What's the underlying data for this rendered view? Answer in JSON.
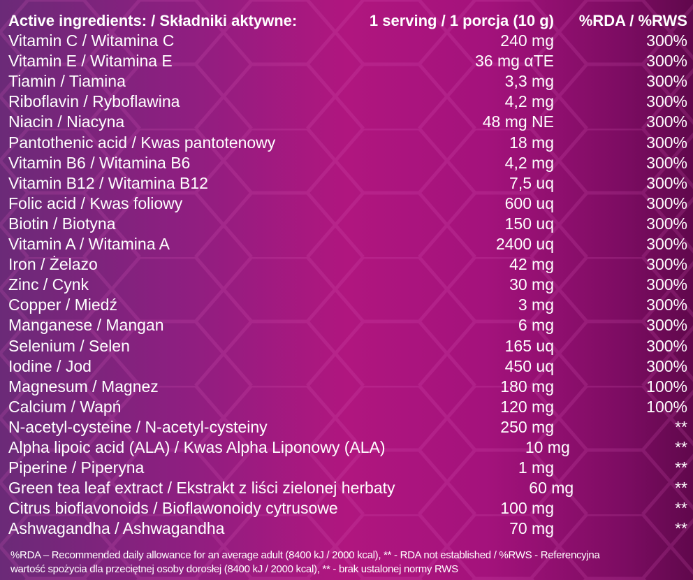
{
  "header": {
    "name": "Active ingredients: / Składniki aktywne:",
    "amount": "1 serving / 1 porcja (10 g)",
    "rda": "%RDA / %RWS"
  },
  "rows": [
    {
      "name": "Vitamin C / Witamina C",
      "amount": "240 mg",
      "rda": "300%"
    },
    {
      "name": "Vitamin E / Witamina E",
      "amount": "36 mg αTE",
      "rda": "300%"
    },
    {
      "name": "Tiamin / Tiamina",
      "amount": "3,3 mg",
      "rda": "300%"
    },
    {
      "name": "Riboflavin / Ryboflawina",
      "amount": "4,2 mg",
      "rda": "300%"
    },
    {
      "name": "Niacin / Niacyna",
      "amount": "48 mg NE",
      "rda": "300%"
    },
    {
      "name": "Pantothenic acid / Kwas pantotenowy",
      "amount": "18 mg",
      "rda": "300%"
    },
    {
      "name": "Vitamin B6 / Witamina B6",
      "amount": "4,2 mg",
      "rda": "300%"
    },
    {
      "name": "Vitamin B12 / Witamina B12",
      "amount": "7,5 uq",
      "rda": "300%"
    },
    {
      "name": "Folic acid / Kwas foliowy",
      "amount": "600 uq",
      "rda": "300%"
    },
    {
      "name": "Biotin / Biotyna",
      "amount": "150 uq",
      "rda": "300%"
    },
    {
      "name": "Vitamin A / Witamina A",
      "amount": "2400 uq",
      "rda": "300%"
    },
    {
      "name": "Iron / Żelazo",
      "amount": "42 mg",
      "rda": "300%"
    },
    {
      "name": "Zinc / Cynk",
      "amount": "30 mg",
      "rda": "300%"
    },
    {
      "name": "Copper / Miedź",
      "amount": "3 mg",
      "rda": "300%"
    },
    {
      "name": "Manganese / Mangan",
      "amount": "6 mg",
      "rda": "300%"
    },
    {
      "name": "Selenium / Selen",
      "amount": "165 uq",
      "rda": "300%"
    },
    {
      "name": "Iodine / Jod",
      "amount": "450 uq",
      "rda": "300%"
    },
    {
      "name": "Magnesum / Magnez",
      "amount": "180 mg",
      "rda": "100%"
    },
    {
      "name": "Calcium / Wapń",
      "amount": "120 mg",
      "rda": "100%"
    },
    {
      "name": "N-acetyl-cysteine / N-acetyl-cysteiny",
      "amount": "250 mg",
      "rda": "**"
    },
    {
      "name": "Alpha lipoic acid (ALA) / Kwas Alpha Liponowy (ALA)",
      "amount": "10 mg",
      "rda": "**"
    },
    {
      "name": "Piperine / Piperyna",
      "amount": "1 mg",
      "rda": "**"
    },
    {
      "name": "Green tea leaf extract / Ekstrakt z liści zielonej herbaty",
      "amount": "60 mg",
      "rda": "**"
    },
    {
      "name": "Citrus bioflavonoids / Bioflawonoidy cytrusowe",
      "amount": "100 mg",
      "rda": "**"
    },
    {
      "name": "Ashwagandha / Ashwagandha",
      "amount": "70 mg",
      "rda": "**"
    }
  ],
  "footer": {
    "line1": "%RDA – Recommended daily allowance for an average adult (8400 kJ / 2000 kcal), ** - RDA not established / %RWS - Referencyjna",
    "line2": "wartość spożycia dla przeciętnej osoby dorosłej (8400 kJ / 2000 kcal), ** - brak ustalonej normy RWS"
  }
}
